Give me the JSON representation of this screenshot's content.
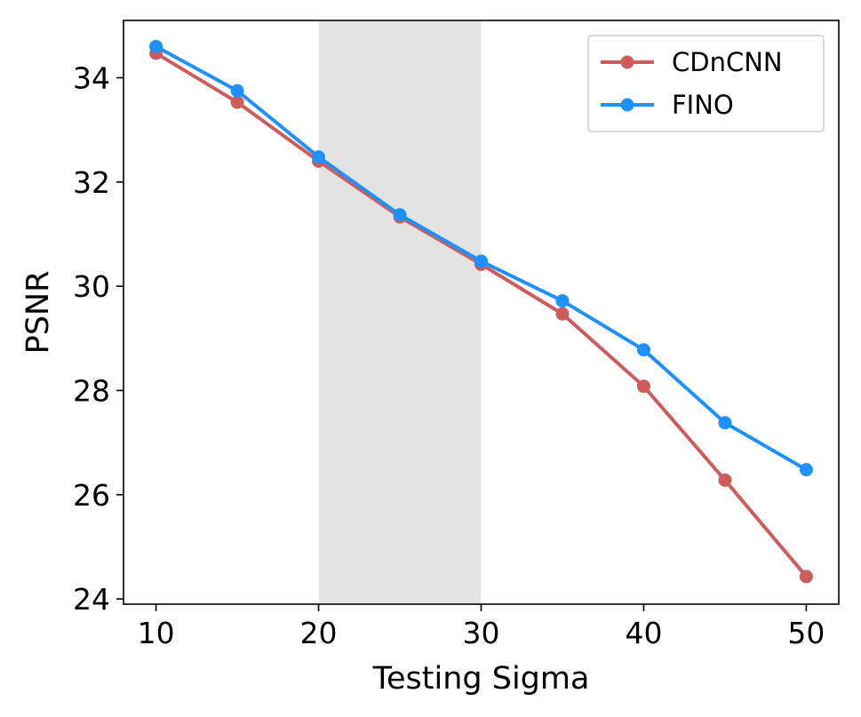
{
  "chart_data": {
    "type": "line",
    "title": "",
    "xlabel": "Testing Sigma",
    "ylabel": "PSNR",
    "x": [
      10,
      15,
      20,
      25,
      30,
      35,
      40,
      45,
      50
    ],
    "xlim": [
      8,
      52
    ],
    "ylim": [
      23.9,
      35.1
    ],
    "xticks": [
      10,
      20,
      30,
      40,
      50
    ],
    "yticks": [
      24,
      26,
      28,
      30,
      32,
      34
    ],
    "highlight_span": {
      "from": 20,
      "to": 30,
      "color": "#e3e3e3"
    },
    "grid": false,
    "legend_position": "top-right",
    "series": [
      {
        "name": "CDnCNN",
        "color": "#cd5c5c",
        "values": [
          34.47,
          33.53,
          32.4,
          31.33,
          30.42,
          29.47,
          28.08,
          26.28,
          24.43
        ]
      },
      {
        "name": "FINO",
        "color": "#1e90ff",
        "values": [
          34.6,
          33.75,
          32.48,
          31.37,
          30.48,
          29.72,
          28.78,
          27.38,
          26.48
        ]
      }
    ]
  }
}
